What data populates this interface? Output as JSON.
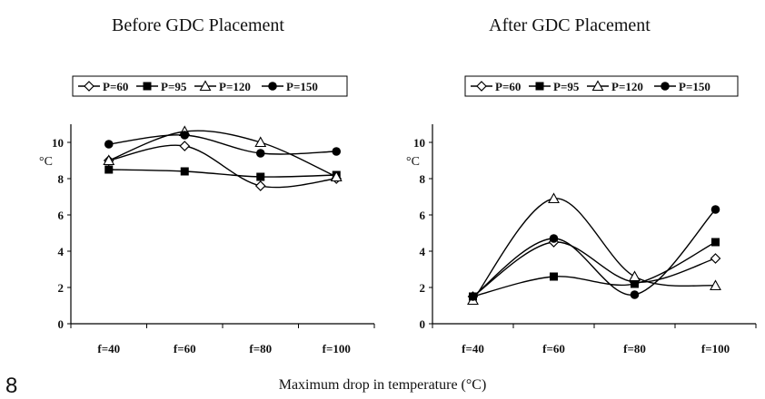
{
  "figure_number": "8",
  "caption": "Maximum drop in temperature (°C)",
  "chart_data": [
    {
      "type": "line",
      "title": "Before GDC Placement",
      "xlabel": "",
      "ylabel": "°C",
      "categories": [
        "f=40",
        "f=60",
        "f=80",
        "f=100"
      ],
      "ylim": [
        0,
        11
      ],
      "yticks": [
        0,
        2,
        4,
        6,
        8,
        10
      ],
      "grid": false,
      "legend_position": "top",
      "series": [
        {
          "name": "P=60",
          "marker": "diamond-open",
          "values": [
            9.0,
            9.8,
            7.6,
            8.0
          ]
        },
        {
          "name": "P=95",
          "marker": "square-filled",
          "values": [
            8.5,
            8.4,
            8.1,
            8.2
          ]
        },
        {
          "name": "P=120",
          "marker": "triangle-open",
          "values": [
            9.0,
            10.6,
            10.0,
            8.1
          ]
        },
        {
          "name": "P=150",
          "marker": "circle-filled",
          "values": [
            9.9,
            10.4,
            9.4,
            9.5
          ]
        }
      ]
    },
    {
      "type": "line",
      "title": "After GDC Placement",
      "xlabel": "",
      "ylabel": "°C",
      "categories": [
        "f=40",
        "f=60",
        "f=80",
        "f=100"
      ],
      "ylim": [
        0,
        11
      ],
      "yticks": [
        0,
        2,
        4,
        6,
        8,
        10
      ],
      "grid": false,
      "legend_position": "top",
      "series": [
        {
          "name": "P=60",
          "marker": "diamond-open",
          "values": [
            1.5,
            4.5,
            2.3,
            3.6
          ]
        },
        {
          "name": "P=95",
          "marker": "square-filled",
          "values": [
            1.5,
            2.6,
            2.2,
            4.5
          ]
        },
        {
          "name": "P=120",
          "marker": "triangle-open",
          "values": [
            1.3,
            6.9,
            2.6,
            2.1
          ]
        },
        {
          "name": "P=150",
          "marker": "circle-filled",
          "values": [
            1.5,
            4.7,
            1.6,
            6.3
          ]
        }
      ]
    }
  ]
}
